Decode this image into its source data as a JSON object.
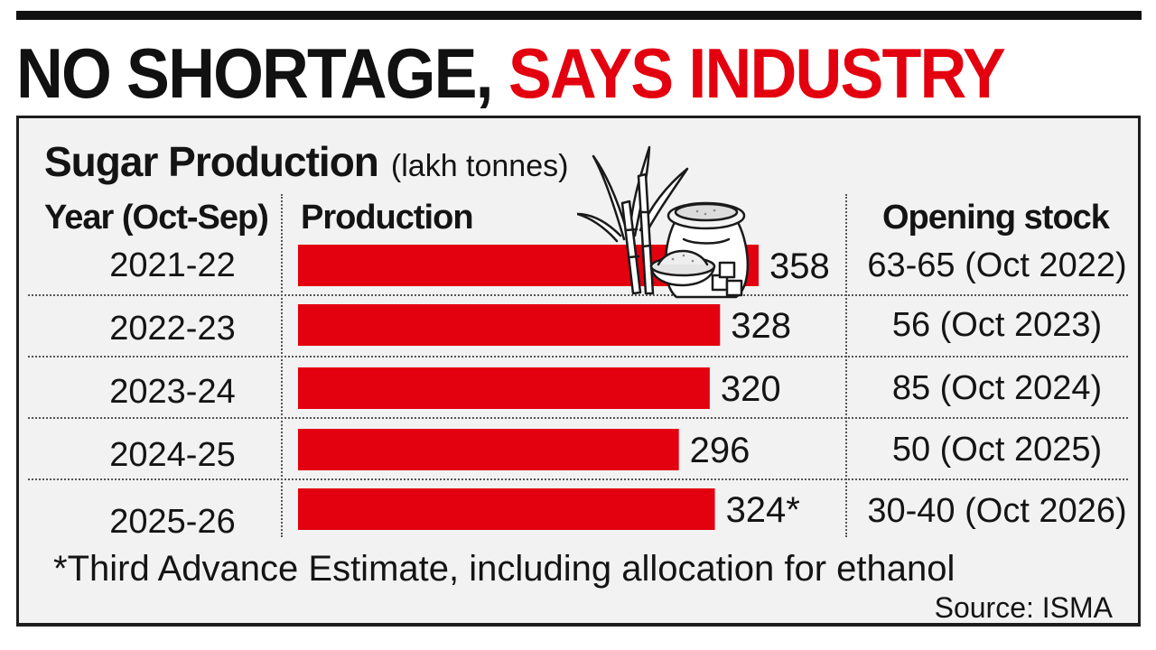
{
  "headline": {
    "part1": "NO SHORTAGE,",
    "part2": "SAYS INDUSTRY"
  },
  "colors": {
    "bar": "#e3000f",
    "headline_accent": "#e3000f",
    "panel_bg": "#f2f2f2",
    "text": "#141414"
  },
  "table": {
    "headers": {
      "year": "Year (Oct-Sep)",
      "production": "Production",
      "opening_stock": "Opening stock"
    },
    "rows": [
      {
        "year": "2021-22",
        "opening_stock": "63-65 (Oct 2022)"
      },
      {
        "year": "2022-23",
        "opening_stock": "56 (Oct 2023)"
      },
      {
        "year": "2023-24",
        "opening_stock": "85 (Oct 2024)"
      },
      {
        "year": "2024-25",
        "opening_stock": "50 (Oct 2025)"
      },
      {
        "year": "2025-26",
        "opening_stock": "30-40 (Oct 2026)"
      }
    ]
  },
  "chart_data": {
    "type": "bar",
    "orientation": "horizontal",
    "title": "Sugar Production",
    "unit": "(lakh tonnes)",
    "categories": [
      "2021-22",
      "2022-23",
      "2023-24",
      "2024-25",
      "2025-26"
    ],
    "values": [
      358,
      328,
      320,
      296,
      324
    ],
    "value_labels": [
      "358",
      "328",
      "320",
      "296",
      "324*"
    ],
    "xlim": [
      0,
      358
    ],
    "grid": false,
    "legend": "none"
  },
  "footnote": "*Third Advance Estimate, including allocation for ethanol",
  "source": "Source: ISMA",
  "illustration": {
    "icon": "sugarcane-and-sugar-sack-icon"
  }
}
